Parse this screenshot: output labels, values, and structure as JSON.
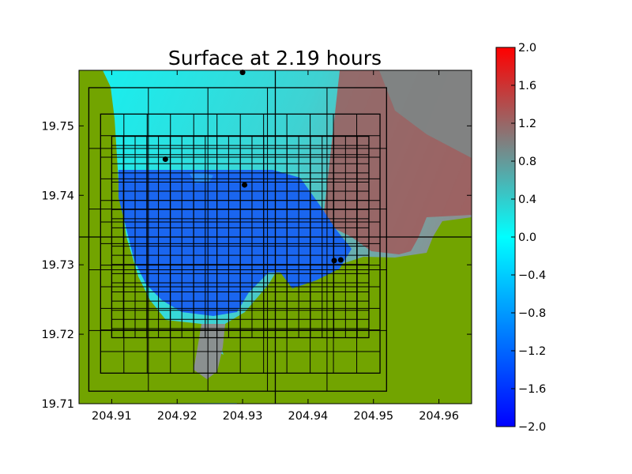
{
  "chart_data": {
    "type": "heatmap",
    "title": "Surface at 2.19 hours",
    "xlabel": "",
    "ylabel": "",
    "xlim": [
      204.905,
      204.965
    ],
    "ylim": [
      19.71,
      19.758
    ],
    "x_ticks": [
      "204.91",
      "204.92",
      "204.93",
      "204.94",
      "204.95",
      "204.96"
    ],
    "x_tick_values": [
      204.91,
      204.92,
      204.93,
      204.94,
      204.95,
      204.96
    ],
    "y_ticks": [
      "19.71",
      "19.72",
      "19.73",
      "19.74",
      "19.75"
    ],
    "y_tick_values": [
      19.71,
      19.72,
      19.73,
      19.74,
      19.75
    ],
    "colorbar": {
      "min": -2.0,
      "max": 2.0,
      "ticks": [
        "−2.0",
        "−1.6",
        "−1.2",
        "−0.8",
        "−0.4",
        "0.0",
        "0.4",
        "0.8",
        "1.2",
        "1.6",
        "2.0"
      ],
      "tick_values": [
        -2.0,
        -1.6,
        -1.2,
        -0.8,
        -0.4,
        0.0,
        0.4,
        0.8,
        1.2,
        1.6,
        2.0
      ],
      "colors": [
        "#0000ff",
        "#00ffff",
        "#ff0000"
      ]
    },
    "land_color": "#72a400",
    "gauges": [
      {
        "x": 204.93,
        "y": 19.7577
      },
      {
        "x": 204.9182,
        "y": 19.7452
      },
      {
        "x": 204.9303,
        "y": 19.7415
      },
      {
        "x": 204.944,
        "y": 19.7306
      },
      {
        "x": 204.945,
        "y": 19.7307
      }
    ],
    "center_lines": {
      "x": 204.935,
      "y": 19.734
    },
    "grid_patches": [
      {
        "x0": 204.9065,
        "x1": 204.952,
        "y0": 19.7118,
        "y1": 19.7555,
        "nx": 5,
        "ny": 5
      },
      {
        "x0": 204.9083,
        "x1": 204.951,
        "y0": 19.7144,
        "y1": 19.7517,
        "nx": 12,
        "ny": 12
      },
      {
        "x0": 204.91,
        "x1": 204.9493,
        "y0": 19.7195,
        "y1": 19.7485,
        "nx": 22,
        "ny": 22
      }
    ]
  }
}
